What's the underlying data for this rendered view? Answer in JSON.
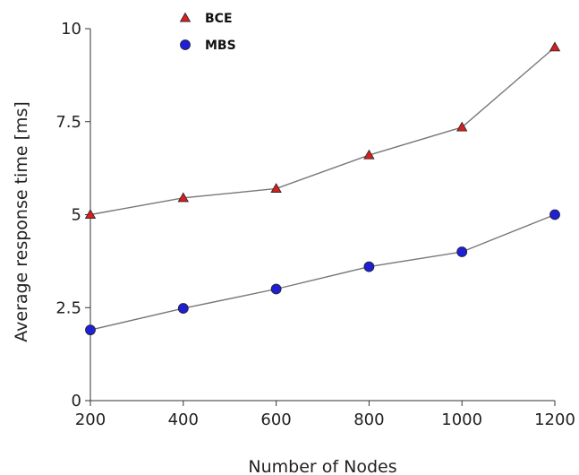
{
  "chart_data": {
    "type": "line",
    "title": "",
    "xlabel": "Number of Nodes",
    "ylabel": "Average response time [ms]",
    "x": [
      200,
      400,
      600,
      800,
      1000,
      1200
    ],
    "xticks": [
      "200",
      "400",
      "600",
      "800",
      "1000",
      "1200"
    ],
    "yticks": [
      "0",
      "2.5",
      "5",
      "7.5",
      "10"
    ],
    "xlim": [
      200,
      1200
    ],
    "ylim": [
      0,
      10
    ],
    "grid": false,
    "legend_position": "top-left",
    "series": [
      {
        "name": "BCE",
        "marker": "triangle",
        "color": "#d42020",
        "line_color": "#777777",
        "values": [
          5.0,
          5.45,
          5.7,
          6.6,
          7.35,
          9.5
        ]
      },
      {
        "name": "MBS",
        "marker": "circle",
        "color": "#1f1fd6",
        "line_color": "#777777",
        "values": [
          1.9,
          2.48,
          3.0,
          3.6,
          4.0,
          5.0
        ]
      }
    ]
  }
}
